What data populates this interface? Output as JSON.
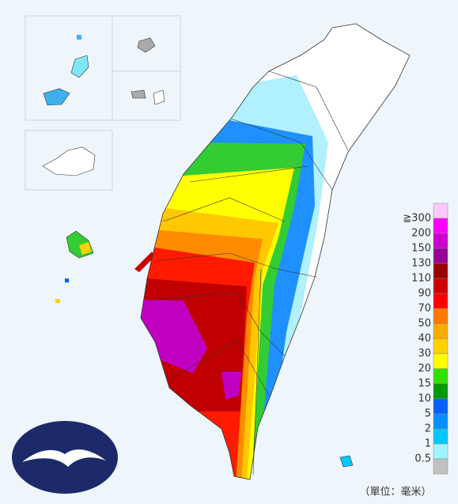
{
  "legend": {
    "colors": [
      "#fdc8fd",
      "#ff00ff",
      "#cc00cc",
      "#990099",
      "#990000",
      "#cc0000",
      "#ff0000",
      "#ff7800",
      "#ffaa00",
      "#ffd200",
      "#ffff00",
      "#33e000",
      "#009900",
      "#0060ff",
      "#0090ff",
      "#00c8ff",
      "#9ff5ff",
      "#c0c0c0"
    ],
    "labels": [
      "≧300",
      "200",
      "150",
      "130",
      "110",
      "90",
      "70",
      "50",
      "40",
      "30",
      "20",
      "15",
      "10",
      "5",
      "2",
      "1",
      "0.5"
    ]
  },
  "unit": "（單位：毫米）"
}
